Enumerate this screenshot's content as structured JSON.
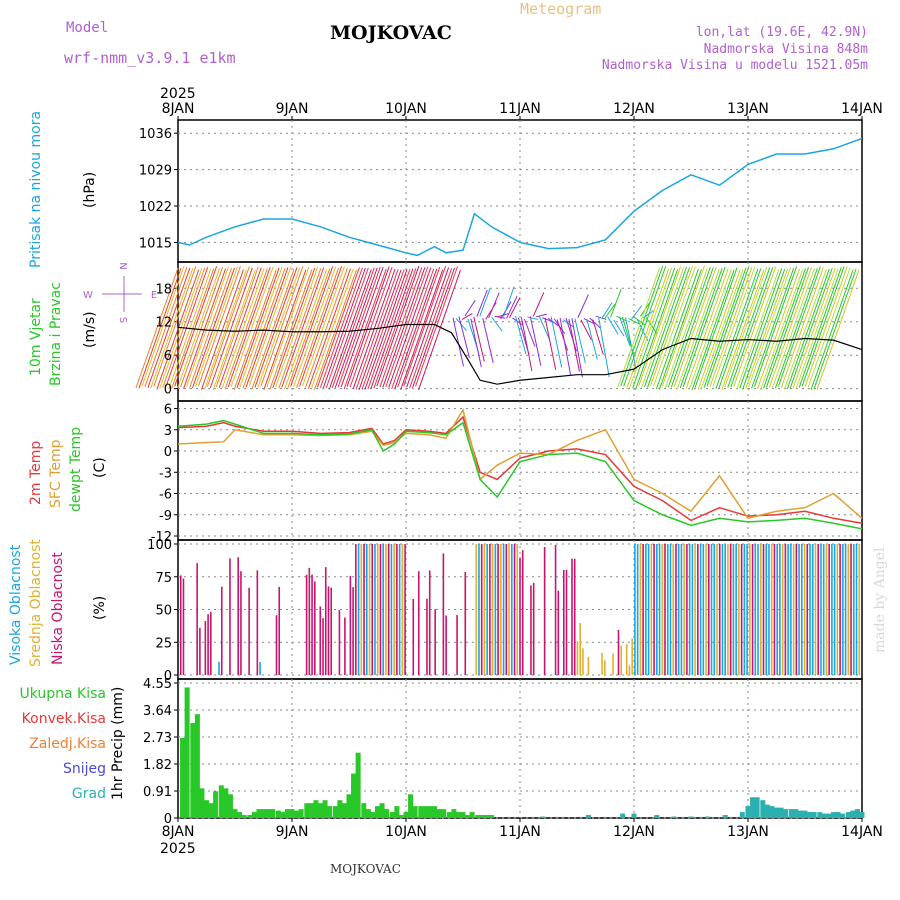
{
  "header": {
    "model_label": "Model",
    "model_name": "wrf-nmm_v3.9.1 e1km",
    "title": "MOJKOVAC",
    "meteogram_label": "Meteogram",
    "location": "lon,lat (19.6E, 42.9N)",
    "elevation": "Nadmorska Visina 848m",
    "model_elevation": "Nadmorska Visina u modelu 1521.05m",
    "footer": "MOJKOVAC",
    "watermark": "made by Angel"
  },
  "colors": {
    "pressure": "#1aa6e0",
    "temp2m": "#e83838",
    "sfc_temp": "#e0a030",
    "dewpt": "#28c828",
    "wind_speed": "#000000",
    "cloud_high": "#1aa6e0",
    "cloud_mid": "#e0b030",
    "cloud_low": "#c8146e",
    "precip_total": "#28c828",
    "precip_conv": "#e83838",
    "precip_frz": "#f08030",
    "snow": "#4a4ad8",
    "graupel": "#2ab0b0",
    "model_text": "#b060d0",
    "meteogram_text": "#e8c080"
  },
  "chart_data": {
    "type": "meteogram",
    "x_axis": {
      "dates": [
        "8JAN",
        "9JAN",
        "10JAN",
        "11JAN",
        "12JAN",
        "13JAN",
        "14JAN"
      ],
      "year": "2025",
      "x_range_days": [
        0,
        6
      ]
    },
    "panels": [
      {
        "id": "pressure",
        "type": "line",
        "ylabel": "Pritisak na nivou mora",
        "unit": "(hPa)",
        "yticks": [
          1015,
          1022,
          1029,
          1036
        ],
        "ylim": [
          1012,
          1037
        ],
        "series": [
          {
            "x": [
              0,
              0.1,
              0.25,
              0.5,
              0.75,
              1.0,
              1.25,
              1.5,
              1.75,
              2.0,
              2.1,
              2.25,
              2.35,
              2.5,
              2.6,
              2.75,
              3.0,
              3.25,
              3.5,
              3.75,
              4.0,
              4.25,
              4.5,
              4.75,
              5.0,
              5.25,
              5.5,
              5.75,
              6.0
            ],
            "y": [
              1015,
              1014.5,
              1016,
              1018,
              1019.5,
              1019.5,
              1018,
              1016,
              1014.5,
              1013,
              1012.5,
              1014.2,
              1013,
              1013.5,
              1020.5,
              1018,
              1015,
              1013.8,
              1014,
              1015.5,
              1021,
              1025,
              1028,
              1026,
              1030,
              1032,
              1032,
              1033,
              1035
            ]
          }
        ]
      },
      {
        "id": "wind",
        "type": "line",
        "ylabel_lines": [
          "10m Vjetar",
          "Brzina i Pravac"
        ],
        "unit": "(m/s)",
        "compass": {
          "n": "N",
          "s": "S",
          "e": "E",
          "w": "W"
        },
        "yticks": [
          0,
          6,
          12,
          18
        ],
        "ylim": [
          -1.5,
          22
        ],
        "series": [
          {
            "x": [
              0,
              0.25,
              0.5,
              0.75,
              1.0,
              1.25,
              1.5,
              1.75,
              2.0,
              2.25,
              2.4,
              2.55,
              2.65,
              2.8,
              3.0,
              3.25,
              3.5,
              3.75,
              4.0,
              4.25,
              4.5,
              4.75,
              5.0,
              5.25,
              5.5,
              5.75,
              6.0
            ],
            "y": [
              11,
              10.5,
              10.3,
              10.5,
              10.2,
              10.2,
              10.3,
              10.8,
              11.5,
              11.5,
              10,
              5,
              1.5,
              0.8,
              1.5,
              2,
              2.5,
              2.5,
              3.5,
              7,
              9,
              8.5,
              8.8,
              8.5,
              9,
              8.7,
              7
            ]
          }
        ]
      },
      {
        "id": "temperature",
        "type": "line",
        "legend": [
          "2m Temp",
          "SFC Temp",
          "dewpt Temp"
        ],
        "unit": "(C)",
        "yticks": [
          -12,
          -9,
          -6,
          -3,
          0,
          3,
          6
        ],
        "ylim": [
          -12,
          6.5
        ],
        "series": [
          {
            "name": "2m Temp",
            "key": "temp2m",
            "x": [
              0,
              0.25,
              0.4,
              0.5,
              0.75,
              1.0,
              1.25,
              1.5,
              1.7,
              1.8,
              1.9,
              2.0,
              2.2,
              2.35,
              2.5,
              2.65,
              2.8,
              3.0,
              3.25,
              3.5,
              3.75,
              4.0,
              4.25,
              4.5,
              4.75,
              5.0,
              5.25,
              5.5,
              5.75,
              6.0
            ],
            "y": [
              3.3,
              3.5,
              4,
              3.5,
              2.8,
              2.8,
              2.5,
              2.6,
              3.2,
              1,
              1.5,
              3,
              2.8,
              2.5,
              4.8,
              -3,
              -4,
              -1,
              0,
              0.3,
              -0.5,
              -5,
              -7,
              -9.8,
              -8,
              -9.2,
              -9,
              -8.5,
              -9.5,
              -10.2
            ]
          },
          {
            "name": "SFC Temp",
            "key": "sfc_temp",
            "x": [
              0,
              0.25,
              0.4,
              0.5,
              0.75,
              1.0,
              1.25,
              1.5,
              1.7,
              1.8,
              1.9,
              2.0,
              2.2,
              2.35,
              2.5,
              2.65,
              2.8,
              3.0,
              3.25,
              3.5,
              3.75,
              4.0,
              4.25,
              4.5,
              4.75,
              5.0,
              5.25,
              5.5,
              5.75,
              6.0
            ],
            "y": [
              1,
              1.2,
              1.3,
              3,
              2.3,
              2.3,
              2.2,
              2.3,
              2.8,
              0.8,
              1.2,
              2.5,
              2.3,
              1.8,
              5.8,
              -4,
              -2,
              -0.3,
              -0.5,
              1.5,
              3,
              -4,
              -6,
              -8.5,
              -3.5,
              -9.5,
              -8.5,
              -8,
              -6,
              -9.5
            ]
          },
          {
            "name": "dewpt Temp",
            "key": "dewpt",
            "x": [
              0,
              0.25,
              0.4,
              0.5,
              0.75,
              1.0,
              1.25,
              1.5,
              1.7,
              1.8,
              1.9,
              2.0,
              2.2,
              2.35,
              2.5,
              2.65,
              2.8,
              3.0,
              3.25,
              3.5,
              3.75,
              4.0,
              4.25,
              4.5,
              4.75,
              5.0,
              5.25,
              5.5,
              5.75,
              6.0
            ],
            "y": [
              3.5,
              3.8,
              4.3,
              3.8,
              2.5,
              2.5,
              2.3,
              2.4,
              3,
              0,
              1,
              2.8,
              2.6,
              2.3,
              4,
              -4,
              -6.5,
              -1.5,
              -0.5,
              -0.3,
              -1.5,
              -7,
              -9,
              -10.5,
              -9.5,
              -10,
              -9.8,
              -9.5,
              -10.2,
              -11
            ]
          }
        ]
      },
      {
        "id": "clouds",
        "type": "bar",
        "legend": [
          "Visoka Oblacnost",
          "Srednja Oblacnost",
          "Niska Oblacnost"
        ],
        "unit": "(%)",
        "yticks": [
          0,
          25,
          50,
          75,
          100
        ],
        "ylim": [
          0,
          100
        ]
      },
      {
        "id": "precip",
        "type": "bar",
        "legend": [
          "Ukupna Kisa",
          "Konvek.Kisa",
          "Zaledj.Kisa",
          "Snijeg",
          "Grad"
        ],
        "unit": "1hr Precip (mm)",
        "yticks": [
          0,
          0.91,
          1.82,
          2.73,
          3.64,
          4.55
        ],
        "ylim": [
          0,
          4.55
        ],
        "series": [
          {
            "name": "Ukupna Kisa",
            "key": "precip_total",
            "x": [
              0.04,
              0.08,
              0.13,
              0.17,
              0.21,
              0.25,
              0.29,
              0.33,
              0.38,
              0.42,
              0.46,
              0.5,
              0.54,
              0.58,
              0.63,
              0.67,
              0.71,
              0.75,
              0.79,
              0.83,
              0.88,
              0.92,
              0.96,
              1.0,
              1.04,
              1.08,
              1.13,
              1.17,
              1.21,
              1.25,
              1.29,
              1.33,
              1.38,
              1.42,
              1.46,
              1.5,
              1.54,
              1.58,
              1.63,
              1.67,
              1.71,
              1.75,
              1.79,
              1.83,
              1.88,
              1.92,
              1.96,
              2.0,
              2.04,
              2.08,
              2.13,
              2.17,
              2.21,
              2.25,
              2.29,
              2.33,
              2.38,
              2.42,
              2.46,
              2.5,
              2.54,
              2.58,
              2.63,
              2.67,
              2.71,
              2.75
            ],
            "y": [
              2.7,
              4.4,
              3.2,
              3.5,
              1.0,
              0.6,
              0.5,
              0.9,
              1.1,
              1.0,
              0.8,
              0.3,
              0.2,
              0.1,
              0.1,
              0.2,
              0.3,
              0.3,
              0.3,
              0.3,
              0.25,
              0.2,
              0.3,
              0.3,
              0.25,
              0.3,
              0.5,
              0.5,
              0.6,
              0.5,
              0.6,
              0.4,
              0.4,
              0.6,
              0.5,
              0.8,
              1.5,
              2.2,
              0.5,
              0.3,
              0.2,
              0.4,
              0.5,
              0.3,
              0.2,
              0.4,
              0.1,
              0.2,
              0.8,
              0.4,
              0.4,
              0.4,
              0.4,
              0.4,
              0.3,
              0.3,
              0.2,
              0.3,
              0.2,
              0.2,
              0.1,
              0.2,
              0.1,
              0.1,
              0.1,
              0.1
            ]
          },
          {
            "name": "Grad",
            "key": "graupel",
            "x": [
              3.2,
              3.6,
              3.9,
              4.0,
              4.2,
              4.35,
              4.5,
              4.65,
              4.8,
              4.95,
              5.0,
              5.04,
              5.08,
              5.13,
              5.17,
              5.21,
              5.25,
              5.29,
              5.33,
              5.38,
              5.42,
              5.46,
              5.5,
              5.54,
              5.58,
              5.63,
              5.67,
              5.71,
              5.75,
              5.79,
              5.83,
              5.88,
              5.92,
              5.96,
              6.0
            ],
            "y": [
              0.05,
              0.1,
              0.15,
              0.15,
              0.1,
              0.05,
              0.05,
              0.05,
              0.1,
              0.2,
              0.4,
              0.7,
              0.7,
              0.6,
              0.45,
              0.4,
              0.35,
              0.35,
              0.3,
              0.3,
              0.3,
              0.25,
              0.25,
              0.2,
              0.2,
              0.2,
              0.15,
              0.15,
              0.2,
              0.2,
              0.15,
              0.2,
              0.25,
              0.3,
              0.2
            ]
          }
        ]
      }
    ]
  }
}
